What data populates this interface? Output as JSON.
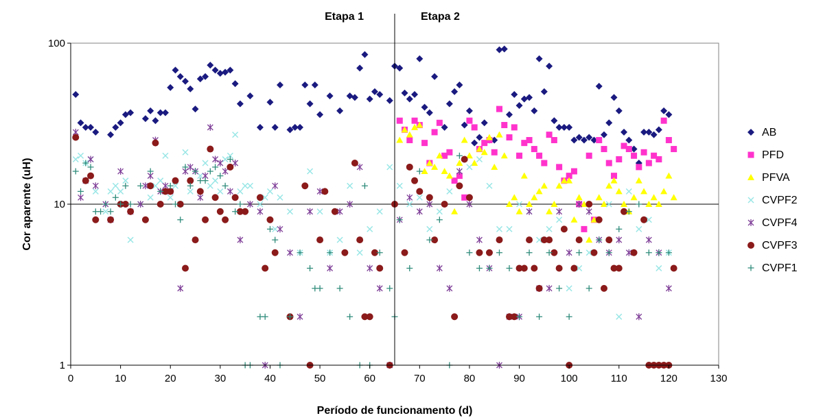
{
  "chart_data": {
    "type": "scatter",
    "title": "",
    "xlabel": "Período de funcionamento (d)",
    "ylabel": "Cor aparente (uH)",
    "xlim": [
      0,
      130
    ],
    "ylim": [
      1,
      100
    ],
    "yscale": "log",
    "x_ticks": [
      "0",
      "10",
      "20",
      "30",
      "40",
      "50",
      "60",
      "70",
      "80",
      "90",
      "100",
      "110",
      "120",
      "130"
    ],
    "y_ticks": [
      "1",
      "10",
      "100"
    ],
    "grid": "horizontal line at 10 only",
    "legend_position": "right",
    "annotations": {
      "stage1": "Etapa 1",
      "stage2": "Etapa 2",
      "divider_x": 65
    },
    "series": [
      {
        "name": "AB",
        "color": "#1a1a80",
        "marker": "diamond",
        "x": [
          1,
          2,
          3,
          4,
          5,
          8,
          9,
          10,
          11,
          12,
          15,
          16,
          17,
          18,
          19,
          20,
          21,
          22,
          23,
          24,
          25,
          26,
          27,
          28,
          29,
          30,
          31,
          32,
          33,
          34,
          36,
          38,
          40,
          41,
          42,
          44,
          45,
          46,
          47,
          48,
          49,
          50,
          52,
          54,
          56,
          57,
          58,
          59,
          60,
          61,
          62,
          64,
          65,
          66,
          67,
          68,
          69,
          70,
          71,
          72,
          73,
          75,
          76,
          77,
          78,
          79,
          80,
          81,
          82,
          83,
          84,
          85,
          86,
          87,
          88,
          89,
          90,
          91,
          92,
          93,
          94,
          95,
          96,
          97,
          98,
          99,
          100,
          101,
          102,
          103,
          104,
          105,
          106,
          107,
          108,
          109,
          110,
          111,
          112,
          113,
          114,
          115,
          116,
          117,
          118,
          119,
          120
        ],
        "y": [
          48,
          32,
          30,
          30,
          28,
          27,
          30,
          32,
          36,
          37,
          34,
          38,
          33,
          37,
          37,
          53,
          68,
          62,
          58,
          52,
          39,
          60,
          62,
          73,
          68,
          65,
          66,
          68,
          56,
          42,
          47,
          30,
          43,
          30,
          55,
          29,
          30,
          30,
          55,
          42,
          55,
          36,
          47,
          38,
          47,
          46,
          70,
          85,
          45,
          50,
          48,
          44,
          72,
          70,
          49,
          45,
          48,
          80,
          40,
          37,
          62,
          30,
          42,
          50,
          55,
          31,
          38,
          24,
          26,
          32,
          25,
          25,
          91,
          92,
          36,
          48,
          41,
          45,
          46,
          38,
          80,
          50,
          72,
          33,
          30,
          30,
          30,
          25,
          26,
          25,
          26,
          25,
          54,
          27,
          32,
          46,
          38,
          28,
          25,
          22,
          18,
          28,
          28,
          27,
          29,
          38,
          36
        ]
      },
      {
        "name": "PFD",
        "color": "#ff33cc",
        "marker": "square",
        "x": [
          66,
          67,
          68,
          69,
          70,
          71,
          72,
          73,
          74,
          75,
          76,
          77,
          78,
          79,
          80,
          81,
          82,
          83,
          84,
          85,
          86,
          87,
          88,
          89,
          90,
          91,
          92,
          93,
          94,
          95,
          96,
          97,
          98,
          99,
          100,
          101,
          102,
          103,
          104,
          105,
          106,
          107,
          108,
          109,
          110,
          111,
          112,
          113,
          114,
          115,
          116,
          117,
          118,
          119,
          120,
          121
        ],
        "y": [
          33,
          29,
          25,
          33,
          31,
          24,
          18,
          28,
          32,
          20,
          21,
          14,
          15,
          11,
          33,
          30,
          22,
          24,
          25,
          21,
          39,
          31,
          26,
          30,
          20,
          24,
          25,
          22,
          20,
          18,
          27,
          25,
          17,
          14,
          15,
          16,
          10,
          7,
          20,
          8,
          25,
          22,
          18,
          15,
          19,
          23,
          22,
          20,
          17,
          21,
          18,
          20,
          19,
          33,
          25,
          22
        ]
      },
      {
        "name": "PFVA",
        "color": "#ffff00",
        "marker": "triangle",
        "x": [
          66,
          67,
          68,
          69,
          70,
          71,
          72,
          73,
          74,
          75,
          76,
          77,
          78,
          79,
          80,
          81,
          82,
          83,
          84,
          85,
          86,
          87,
          88,
          89,
          90,
          91,
          92,
          93,
          94,
          95,
          96,
          97,
          98,
          99,
          100,
          101,
          102,
          103,
          104,
          105,
          106,
          107,
          108,
          109,
          110,
          111,
          112,
          113,
          114,
          115,
          116,
          117,
          118,
          119,
          120,
          121
        ],
        "y": [
          25,
          29,
          27,
          30,
          31,
          16,
          18,
          17,
          20,
          16,
          15,
          9,
          18,
          25,
          20,
          18,
          22,
          21,
          26,
          17,
          27,
          20,
          10,
          11,
          9,
          15,
          10,
          11,
          12,
          13,
          9,
          10,
          13,
          14,
          14,
          8,
          11,
          10,
          6,
          8,
          11,
          10,
          13,
          14,
          12,
          10,
          9,
          11,
          14,
          12,
          10,
          11,
          10,
          12,
          15,
          11
        ]
      },
      {
        "name": "CVPF2",
        "color": "#99e6e6",
        "marker": "x",
        "x": [
          1,
          2,
          3,
          4,
          5,
          7,
          8,
          9,
          10,
          11,
          12,
          14,
          16,
          17,
          18,
          19,
          20,
          21,
          22,
          23,
          24,
          25,
          26,
          27,
          28,
          29,
          30,
          31,
          32,
          33,
          34,
          35,
          36,
          38,
          39,
          40,
          41,
          42,
          44,
          46,
          48,
          50,
          52,
          54,
          56,
          58,
          60,
          62,
          64,
          66,
          68,
          70,
          72,
          74,
          76,
          78,
          80,
          82,
          84,
          86,
          88,
          90,
          92,
          94,
          96,
          98,
          100,
          102,
          104,
          106,
          108,
          110,
          112,
          114,
          116,
          118,
          120
        ],
        "y": [
          19,
          20,
          18,
          19,
          12,
          9,
          12,
          13,
          12,
          14,
          6,
          10,
          11,
          13,
          14,
          20,
          11,
          13,
          10,
          21,
          12,
          16,
          15,
          18,
          13,
          14,
          12,
          19,
          20,
          27,
          12,
          13,
          13,
          10,
          11,
          12,
          7,
          11,
          9,
          5,
          16,
          9,
          5,
          6,
          13,
          5,
          7,
          9,
          17,
          13,
          10,
          11,
          7,
          9,
          12,
          16,
          17,
          19,
          13,
          7,
          7,
          10,
          9,
          6,
          7,
          8,
          3,
          4,
          5,
          6,
          10,
          2,
          12,
          7,
          8,
          4,
          5
        ]
      },
      {
        "name": "CVPF4",
        "color": "#7f3f98",
        "marker": "asterisk",
        "x": [
          1,
          2,
          3,
          4,
          5,
          7,
          8,
          10,
          12,
          14,
          15,
          16,
          17,
          18,
          19,
          20,
          22,
          23,
          24,
          25,
          26,
          27,
          28,
          29,
          30,
          31,
          32,
          33,
          34,
          36,
          38,
          39,
          41,
          42,
          44,
          46,
          48,
          50,
          52,
          54,
          56,
          58,
          60,
          62,
          64,
          66,
          68,
          70,
          72,
          74,
          76,
          78,
          80,
          82,
          84,
          86,
          88,
          90,
          92,
          94,
          96,
          98,
          100,
          102,
          104,
          106,
          108,
          110,
          112,
          114,
          116,
          118,
          120
        ],
        "y": [
          28,
          11,
          14,
          19,
          13,
          10,
          8,
          16,
          9,
          10,
          13,
          15,
          25,
          12,
          13,
          12,
          3,
          16,
          17,
          16,
          11,
          15,
          30,
          19,
          18,
          16,
          12,
          18,
          6,
          10,
          9,
          1,
          13,
          7,
          5,
          2,
          9,
          12,
          4,
          9,
          10,
          17,
          4,
          3,
          1,
          8,
          11,
          9,
          10,
          4,
          3,
          16,
          10,
          6,
          4,
          1,
          2,
          2,
          9,
          3,
          3,
          9,
          5,
          10,
          9,
          6,
          5,
          6,
          5,
          2,
          6,
          5,
          3
        ]
      },
      {
        "name": "CVPF3",
        "color": "#8b1a1a",
        "marker": "circle",
        "x": [
          1,
          3,
          4,
          5,
          8,
          10,
          11,
          12,
          15,
          16,
          17,
          18,
          19,
          20,
          21,
          22,
          23,
          24,
          25,
          26,
          27,
          28,
          29,
          30,
          31,
          32,
          33,
          34,
          35,
          38,
          39,
          40,
          41,
          44,
          47,
          48,
          50,
          51,
          53,
          55,
          57,
          58,
          59,
          60,
          61,
          62,
          64,
          65,
          67,
          68,
          69,
          70,
          72,
          73,
          75,
          77,
          78,
          79,
          80,
          82,
          84,
          86,
          88,
          89,
          90,
          91,
          92,
          93,
          94,
          95,
          96,
          97,
          98,
          99,
          100,
          101,
          102,
          104,
          105,
          106,
          107,
          108,
          109,
          110,
          111,
          113,
          115,
          116,
          117,
          118,
          119,
          120,
          121
        ],
        "y": [
          26,
          14,
          15,
          8,
          8,
          10,
          10,
          9,
          8,
          13,
          24,
          10,
          12,
          12,
          14,
          10,
          4,
          14,
          6,
          12,
          8,
          22,
          11,
          9,
          8,
          17,
          11,
          9,
          9,
          11,
          4,
          8,
          5,
          2,
          13,
          1,
          6,
          12,
          9,
          5,
          18,
          6,
          2,
          2,
          5,
          4,
          1,
          10,
          5,
          17,
          14,
          12,
          11,
          6,
          10,
          2,
          13,
          19,
          11,
          5,
          5,
          6,
          2,
          2,
          4,
          4,
          6,
          4,
          3,
          6,
          6,
          5,
          4,
          7,
          1,
          4,
          6,
          10,
          5,
          8,
          3,
          6,
          4,
          4,
          9,
          5,
          8,
          1,
          1,
          1,
          1,
          1,
          4
        ]
      },
      {
        "name": "CVPF1",
        "color": "#2e8b7a",
        "marker": "plus",
        "x": [
          1,
          2,
          3,
          4,
          5,
          6,
          7,
          8,
          9,
          10,
          11,
          12,
          14,
          16,
          18,
          20,
          21,
          22,
          23,
          24,
          25,
          26,
          27,
          28,
          29,
          30,
          31,
          32,
          33,
          34,
          35,
          36,
          38,
          39,
          40,
          41,
          42,
          44,
          46,
          48,
          49,
          50,
          52,
          54,
          56,
          58,
          59,
          60,
          62,
          64,
          65,
          66,
          68,
          70,
          72,
          74,
          76,
          78,
          80,
          82,
          84,
          86,
          88,
          90,
          92,
          94,
          96,
          98,
          100,
          102,
          104,
          106,
          108,
          110,
          112,
          114,
          116,
          118,
          120
        ],
        "y": [
          16,
          12,
          18,
          17,
          9,
          9,
          10,
          9,
          11,
          10,
          13,
          10,
          13,
          16,
          12,
          13,
          10,
          8,
          17,
          13,
          16,
          14,
          14,
          16,
          17,
          15,
          13,
          19,
          9,
          10,
          1,
          1,
          2,
          2,
          7,
          6,
          1,
          2,
          5,
          4,
          3,
          3,
          5,
          3,
          2,
          1,
          13,
          1,
          5,
          3,
          2,
          8,
          4,
          16,
          6,
          8,
          1,
          20,
          5,
          4,
          4,
          5,
          4,
          2,
          5,
          2,
          5,
          3,
          2,
          5,
          3,
          6,
          5,
          7,
          9,
          10,
          5,
          5,
          5
        ]
      }
    ]
  }
}
